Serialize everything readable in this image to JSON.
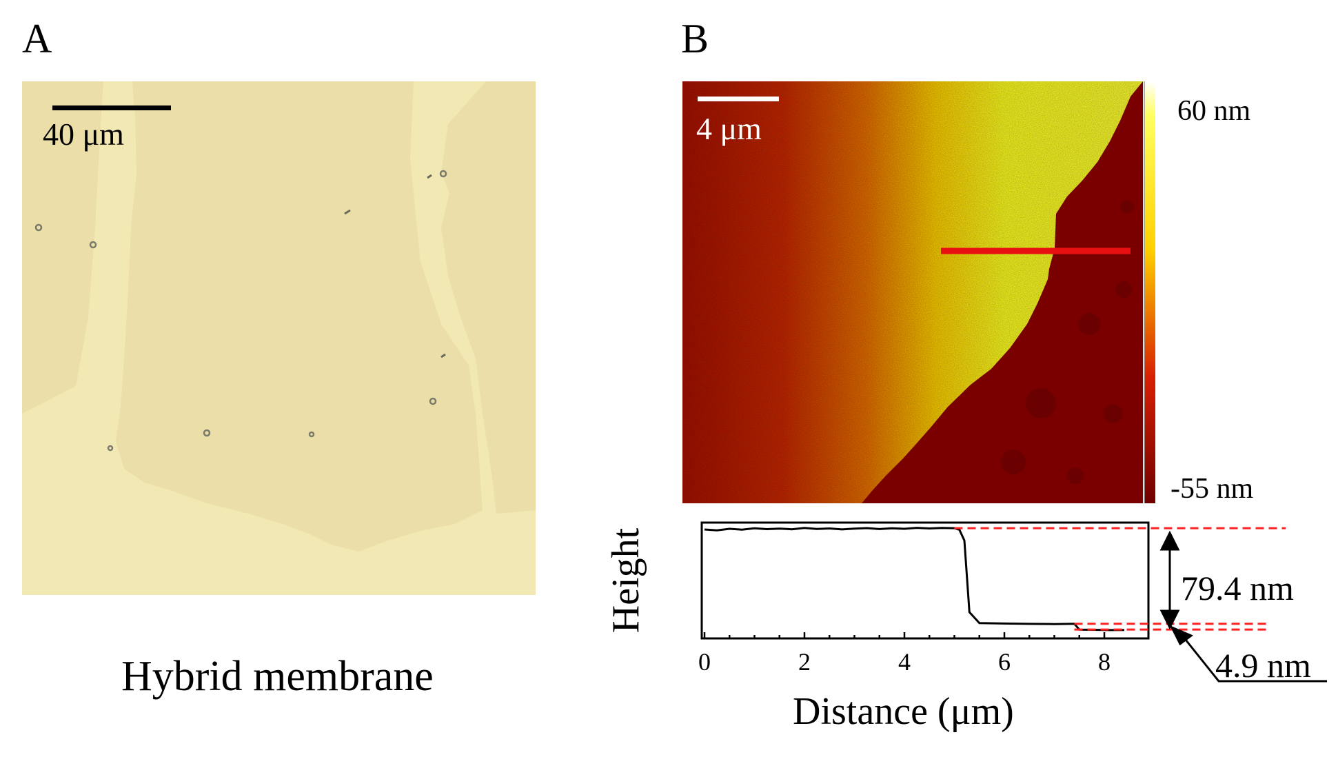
{
  "panelA": {
    "label": "A",
    "scale_bar_label": "40 μm",
    "caption": "Hybrid membrane"
  },
  "panelB": {
    "label": "B",
    "scale_bar_label": "4 μm",
    "colorbar_max_label": "60 nm",
    "colorbar_min_label": "-55 nm",
    "step_height_label": "79.4 nm",
    "small_step_label": "4.9 nm"
  },
  "colors": {
    "micrograph_bg": "#f2e8b4",
    "membrane": "#ebdea8",
    "afm_dark": "#7a0000",
    "afm_bright": "#ffff20",
    "profile_line": "#e81010",
    "dashed_line": "#ff2020"
  },
  "chart_data": {
    "type": "line",
    "xlabel": "Distance (μm)",
    "ylabel": "Height",
    "x_ticks": [
      0,
      2,
      4,
      6,
      8
    ],
    "xlim": [
      0,
      8.5
    ],
    "ylim": [
      -12,
      85
    ],
    "grid": false,
    "series": [
      {
        "x": [
          0,
          0.25,
          0.5,
          0.75,
          1.0,
          1.25,
          1.5,
          1.75,
          2.0,
          2.25,
          2.5,
          2.75,
          3.0,
          3.25,
          3.5,
          3.75,
          4.0,
          4.25,
          4.5,
          4.75,
          5.0,
          5.1,
          5.2,
          5.3,
          5.5,
          6.0,
          6.5,
          7.0,
          7.4,
          7.5,
          7.8,
          8.1,
          8.4
        ],
        "y": [
          79.2,
          78.5,
          79.8,
          79.1,
          80.2,
          79.5,
          80.0,
          79.4,
          80.5,
          79.7,
          80.1,
          79.3,
          79.9,
          80.4,
          79.6,
          80.2,
          79.8,
          80.6,
          80.1,
          80.5,
          80.3,
          79.0,
          70.0,
          10.0,
          0.8,
          0.5,
          0.2,
          0.0,
          0.3,
          -4.6,
          -4.8,
          -5.0,
          -4.9
        ]
      }
    ]
  }
}
